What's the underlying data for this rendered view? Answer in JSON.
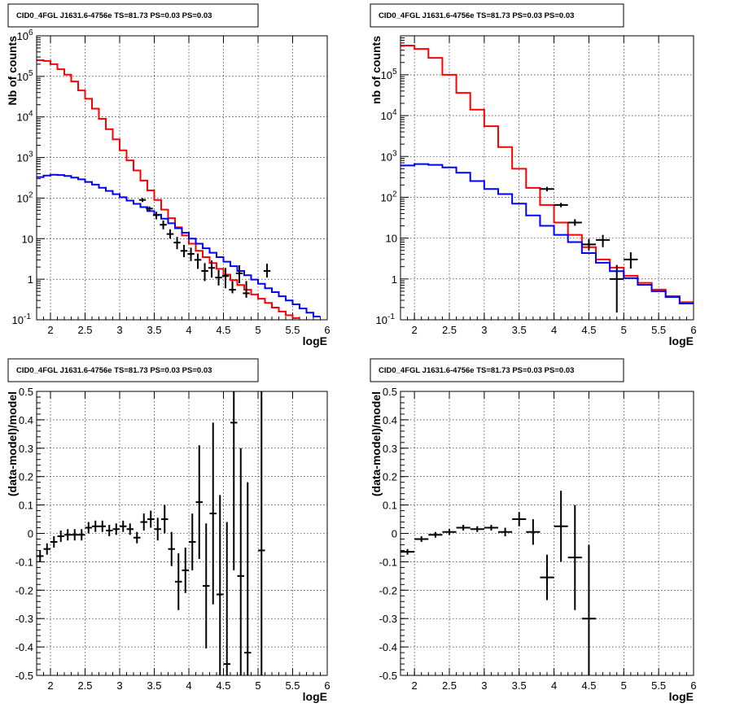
{
  "chart_data": [
    {
      "type": "line",
      "title": "CID0_4FGL J1631.6-4756e TS=81.73 PS=0.03 PS=0.03",
      "xlabel": "logE",
      "ylabel": "Nb of counts",
      "xlim": [
        1.8,
        6.0
      ],
      "ylim": [
        0.1,
        1000000
      ],
      "yscale": "log",
      "grid": true,
      "xticks": [
        "2",
        "2.5",
        "3",
        "3.5",
        "4",
        "4.5",
        "5",
        "5.5",
        "6"
      ],
      "yticks": [
        {
          "v": 0.1,
          "base": "10",
          "exp": "-1"
        },
        {
          "v": 1,
          "text": "1"
        },
        {
          "v": 10,
          "text": "10"
        },
        {
          "v": 100,
          "base": "10",
          "exp": "2"
        },
        {
          "v": 1000,
          "base": "10",
          "exp": "3"
        },
        {
          "v": 10000,
          "base": "10",
          "exp": "4"
        },
        {
          "v": 100000,
          "base": "10",
          "exp": "5"
        },
        {
          "v": 1000000,
          "base": "10",
          "exp": "6"
        }
      ],
      "bin_edges": [
        1.8,
        1.9,
        2.0,
        2.1,
        2.2,
        2.3,
        2.4,
        2.5,
        2.6,
        2.7,
        2.8,
        2.9,
        3.0,
        3.1,
        3.2,
        3.3,
        3.4,
        3.5,
        3.6,
        3.7,
        3.8,
        3.9,
        4.0,
        4.1,
        4.2,
        4.3,
        4.4,
        4.5,
        4.6,
        4.7,
        4.8,
        4.9,
        5.0,
        5.1,
        5.2,
        5.3,
        5.4,
        5.5,
        5.6,
        5.7,
        5.8,
        5.9,
        6.0
      ],
      "series": [
        {
          "color": "#ff0000",
          "style": "step",
          "values": [
            250000,
            240000,
            200000,
            150000,
            110000,
            75000,
            45000,
            28000,
            16000,
            9000,
            5000,
            2800,
            1500,
            850,
            480,
            270,
            155,
            90,
            52,
            32,
            19,
            12,
            7.5,
            5,
            3.5,
            2.5,
            1.8,
            1.3,
            0.95,
            0.72,
            0.55,
            0.42,
            0.33,
            0.26,
            0.2,
            0.16,
            0.13,
            0.11
          ]
        },
        {
          "color": "#0000ff",
          "style": "step",
          "values": [
            330,
            360,
            375,
            370,
            350,
            320,
            290,
            250,
            215,
            180,
            150,
            125,
            105,
            87,
            72,
            60,
            48,
            39,
            31,
            24,
            18,
            14,
            10,
            7.5,
            5.8,
            4.5,
            3.5,
            2.7,
            2.1,
            1.6,
            1.25,
            0.98,
            0.77,
            0.6,
            0.48,
            0.38,
            0.3,
            0.24,
            0.19,
            0.15,
            0.12
          ]
        },
        {
          "color": "#000000",
          "style": "points",
          "x": [
            3.33,
            3.43,
            3.53,
            3.63,
            3.73,
            3.83,
            3.93,
            4.03,
            4.13,
            4.23,
            4.33,
            4.43,
            4.53,
            4.63,
            4.73,
            4.83,
            5.13
          ],
          "y": [
            90,
            55,
            38,
            22,
            13,
            8,
            5,
            4.2,
            3,
            1.6,
            1.9,
            1.1,
            1.2,
            0.55,
            1.4,
            0.45,
            1.6
          ],
          "err_low": [
            80,
            48,
            30,
            17,
            10,
            5.5,
            3.5,
            2.8,
            1.8,
            0.9,
            1.1,
            0.7,
            0.6,
            0.45,
            0.8,
            0.35,
            1.1
          ],
          "err_high": [
            100,
            62,
            46,
            28,
            17,
            11,
            7,
            6,
            4.3,
            2.5,
            2.9,
            1.7,
            1.9,
            0.9,
            2.2,
            0.9,
            2.4
          ],
          "dx": 0.05
        }
      ]
    },
    {
      "type": "line",
      "title": "CID0_4FGL J1631.6-4756e TS=81.73 PS=0.03 PS=0.03",
      "xlabel": "logE",
      "ylabel": "nb of counts",
      "xlim": [
        1.8,
        6.0
      ],
      "ylim": [
        0.1,
        900000
      ],
      "yscale": "log",
      "grid": true,
      "xticks": [
        "2",
        "2.5",
        "3",
        "3.5",
        "4",
        "4.5",
        "5",
        "5.5",
        "6"
      ],
      "yticks": [
        {
          "v": 0.1,
          "base": "10",
          "exp": "-1"
        },
        {
          "v": 1,
          "text": "1"
        },
        {
          "v": 10,
          "text": "10"
        },
        {
          "v": 100,
          "base": "10",
          "exp": "2"
        },
        {
          "v": 1000,
          "base": "10",
          "exp": "3"
        },
        {
          "v": 10000,
          "base": "10",
          "exp": "4"
        },
        {
          "v": 100000,
          "base": "10",
          "exp": "5"
        }
      ],
      "bin_edges": [
        1.8,
        2.0,
        2.2,
        2.4,
        2.6,
        2.8,
        3.0,
        3.2,
        3.4,
        3.6,
        3.8,
        4.0,
        4.2,
        4.4,
        4.6,
        4.8,
        5.0,
        5.2,
        5.4,
        5.6,
        5.8,
        6.0
      ],
      "series": [
        {
          "color": "#ff0000",
          "style": "step",
          "values": [
            520000,
            430000,
            260000,
            100000,
            36000,
            14000,
            5500,
            1700,
            500,
            170,
            65,
            24,
            12,
            6,
            3,
            1.9,
            1.2,
            0.8,
            0.55,
            0.38,
            0.27
          ]
        },
        {
          "color": "#0000ff",
          "style": "step",
          "values": [
            600,
            650,
            620,
            540,
            400,
            250,
            160,
            120,
            70,
            36,
            20,
            12,
            8,
            4.3,
            2.5,
            1.55,
            1.05,
            0.72,
            0.5,
            0.36,
            0.25
          ]
        },
        {
          "color": "#000000",
          "style": "points",
          "x": [
            3.9,
            4.1,
            4.3,
            4.5,
            4.7,
            4.9,
            5.1
          ],
          "y": [
            160,
            65,
            24,
            7,
            9,
            1,
            3
          ],
          "err_low": [
            140,
            57,
            20,
            5,
            6,
            0.15,
            1.8
          ],
          "err_high": [
            180,
            73,
            29,
            9.5,
            12,
            2.2,
            4.5
          ],
          "dx": 0.1
        }
      ]
    },
    {
      "type": "scatter",
      "title": "CID0_4FGL J1631.6-4756e TS=81.73 PS=0.03 PS=0.03",
      "xlabel": "logE",
      "ylabel": "(data-model)/model",
      "xlim": [
        1.8,
        6.0
      ],
      "ylim": [
        -0.5,
        0.5
      ],
      "grid": true,
      "xticks": [
        "2",
        "2.5",
        "3",
        "3.5",
        "4",
        "4.5",
        "5",
        "5.5",
        "6"
      ],
      "yticks": [
        "-0.5",
        "-0.4",
        "-0.3",
        "-0.2",
        "-0.1",
        "0",
        "0.1",
        "0.2",
        "0.3",
        "0.4",
        "0.5"
      ],
      "points": {
        "x": [
          1.85,
          1.95,
          2.05,
          2.15,
          2.25,
          2.35,
          2.45,
          2.55,
          2.65,
          2.75,
          2.85,
          2.95,
          3.05,
          3.15,
          3.25,
          3.35,
          3.45,
          3.55,
          3.65,
          3.75,
          3.85,
          3.95,
          4.05,
          4.15,
          4.25,
          4.35,
          4.45,
          4.55,
          4.65,
          4.75,
          4.85,
          5.05
        ],
        "y": [
          -0.08,
          -0.055,
          -0.03,
          -0.01,
          -0.005,
          -0.005,
          -0.005,
          0.02,
          0.025,
          0.025,
          0.01,
          0.015,
          0.025,
          0.015,
          -0.015,
          0.04,
          0.05,
          0.015,
          0.05,
          -0.055,
          -0.17,
          -0.13,
          -0.03,
          0.11,
          -0.185,
          0.07,
          -0.215,
          -0.46,
          0.39,
          -0.15,
          -0.42,
          -0.06
        ],
        "err": [
          0.02,
          0.02,
          0.02,
          0.02,
          0.02,
          0.02,
          0.02,
          0.02,
          0.02,
          0.02,
          0.02,
          0.02,
          0.02,
          0.02,
          0.02,
          0.03,
          0.03,
          0.04,
          0.05,
          0.06,
          0.1,
          0.08,
          0.1,
          0.2,
          0.22,
          0.32,
          0.35,
          0.5,
          0.52,
          0.45,
          0.6,
          0.9
        ],
        "dx": 0.05
      }
    },
    {
      "type": "scatter",
      "title": "CID0_4FGL J1631.6-4756e TS=81.73 PS=0.03 PS=0.03",
      "xlabel": "logE",
      "ylabel": "(data-model)/model",
      "xlim": [
        1.8,
        6.0
      ],
      "ylim": [
        -0.5,
        0.5
      ],
      "grid": true,
      "xticks": [
        "2",
        "2.5",
        "3",
        "3.5",
        "4",
        "4.5",
        "5",
        "5.5",
        "6"
      ],
      "yticks": [
        "-0.5",
        "-0.4",
        "-0.3",
        "-0.2",
        "-0.1",
        "0",
        "0.1",
        "0.2",
        "0.3",
        "0.4",
        "0.5"
      ],
      "points": {
        "x": [
          1.9,
          2.1,
          2.3,
          2.5,
          2.7,
          2.9,
          3.1,
          3.3,
          3.5,
          3.7,
          3.9,
          4.1,
          4.3,
          4.5
        ],
        "y": [
          -0.065,
          -0.02,
          -0.005,
          0.005,
          0.02,
          0.015,
          0.02,
          0.005,
          0.05,
          0.005,
          -0.155,
          0.025,
          -0.085,
          -0.3
        ],
        "err": [
          0.01,
          0.01,
          0.01,
          0.01,
          0.01,
          0.01,
          0.01,
          0.015,
          0.025,
          0.045,
          0.08,
          0.125,
          0.185,
          0.26
        ],
        "dx": 0.1
      }
    }
  ]
}
